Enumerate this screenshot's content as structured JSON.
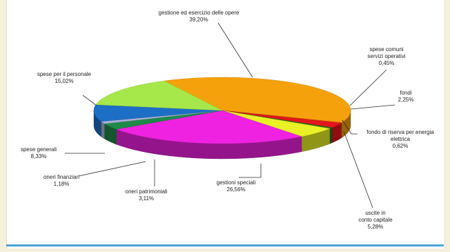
{
  "chart_data": {
    "type": "pie",
    "title": "",
    "slices": [
      {
        "label": "gestione ed esercizio delle opere",
        "value": 39.2,
        "value_text": "39,20%",
        "color": "#f5a10c"
      },
      {
        "label": "spese comuni servizi operativi",
        "value": 0.45,
        "value_text": "0,45%",
        "color": "#e63b1a"
      },
      {
        "label": "fondi",
        "value": 2.25,
        "value_text": "2,25%",
        "color": "#e8141c"
      },
      {
        "label": "fondo di riserva per energia elettrica",
        "value": 0.62,
        "value_text": "0,62%",
        "color": "#2d6f17"
      },
      {
        "label": "uscite in conto capitale",
        "value": 5.28,
        "value_text": "5,28%",
        "color": "#e9f025"
      },
      {
        "label": "gestioni speciali",
        "value": 26.56,
        "value_text": "26,56%",
        "color": "#ee22e0"
      },
      {
        "label": "oneri patrimoniali",
        "value": 3.11,
        "value_text": "3,11%",
        "color": "#1e8a4a"
      },
      {
        "label": "oneri finanziari",
        "value": 1.18,
        "value_text": "1,18%",
        "color": "#a9b0d8"
      },
      {
        "label": "spese generali",
        "value": 8.33,
        "value_text": "8,33%",
        "color": "#1c6fc4"
      },
      {
        "label": "spese per il personale",
        "value": 15.02,
        "value_text": "15,02%",
        "color": "#a6e84a"
      }
    ],
    "labels": [
      {
        "lines": [
          "gestione ed esercizio delle opere",
          "39,20%"
        ]
      },
      {
        "lines": [
          "spese comuni",
          "servizi operativi",
          "0,45%"
        ]
      },
      {
        "lines": [
          "fondi",
          "2,25%"
        ]
      },
      {
        "lines": [
          "fondo di riserva per energia",
          "elettrica",
          "0,62%"
        ]
      },
      {
        "lines": [
          "uscite in",
          "conto capitale",
          "5,28%"
        ]
      },
      {
        "lines": [
          "gestioni speciali",
          "26,56%"
        ]
      },
      {
        "lines": [
          "oneri patrimoniali",
          "3,11%"
        ]
      },
      {
        "lines": [
          "oneri finanziari",
          "1,18%"
        ]
      },
      {
        "lines": [
          "spese generali",
          "8,33%"
        ]
      },
      {
        "lines": [
          "spese per il personale",
          "15,02%"
        ]
      }
    ]
  }
}
